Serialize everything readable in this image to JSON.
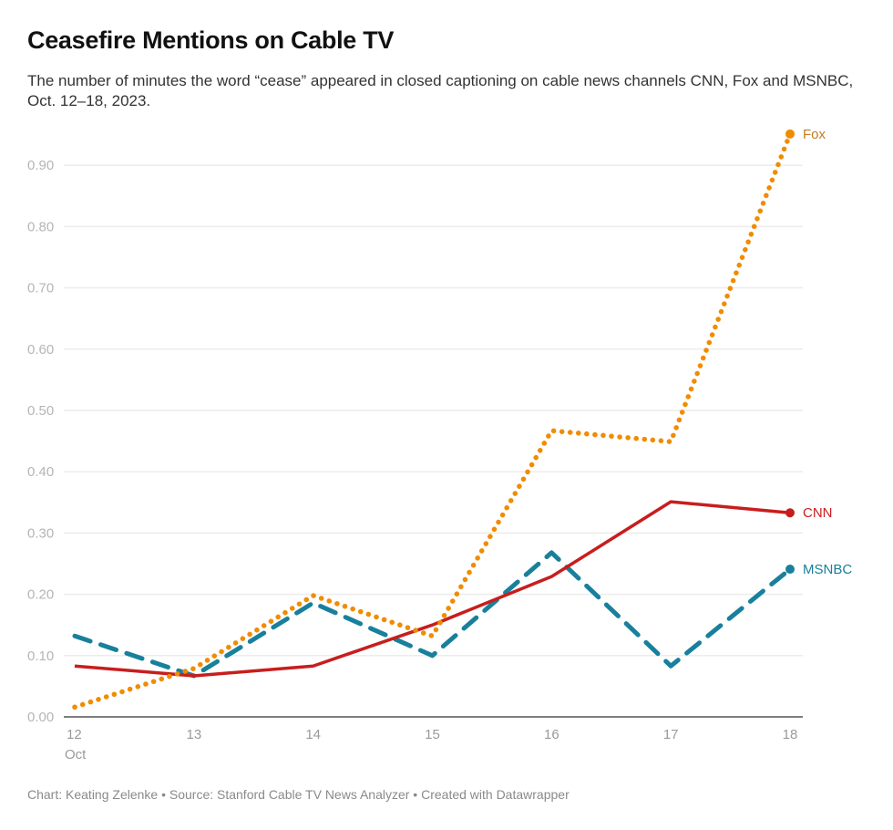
{
  "title": "Ceasefire Mentions on Cable TV",
  "subtitle": "The number of minutes the word “cease” appeared in closed captioning on cable news channels CNN, Fox and MSNBC, Oct. 12–18, 2023.",
  "footer": "Chart: Keating Zelenke • Source: Stanford Cable TV News Analyzer • Created with Datawrapper",
  "chart_data": {
    "type": "line",
    "title": "Ceasefire Mentions on Cable TV",
    "xlabel": "",
    "ylabel": "",
    "x": [
      12,
      13,
      14,
      15,
      16,
      17,
      18
    ],
    "x_tick_labels": [
      "12",
      "13",
      "14",
      "15",
      "16",
      "17",
      "18"
    ],
    "x_sub_label": "Oct",
    "ylim": [
      0,
      0.95
    ],
    "y_ticks": [
      0,
      0.1,
      0.2,
      0.3,
      0.4,
      0.5,
      0.6,
      0.7,
      0.8,
      0.9
    ],
    "y_tick_labels": [
      "0.00",
      "0.10",
      "0.20",
      "0.30",
      "0.40",
      "0.50",
      "0.60",
      "0.70",
      "0.80",
      "0.90"
    ],
    "grid": true,
    "legend": "direct labels at line ends (right)",
    "series": [
      {
        "name": "Fox",
        "color": "#f08c00",
        "label_color": "#c77a1e",
        "style": "dotted",
        "values": [
          0.016,
          0.079,
          0.198,
          0.132,
          0.467,
          0.449,
          0.951
        ]
      },
      {
        "name": "CNN",
        "color": "#c71e1d",
        "label_color": "#c71e1d",
        "style": "solid",
        "values": [
          0.083,
          0.067,
          0.083,
          0.15,
          0.229,
          0.351,
          0.333
        ]
      },
      {
        "name": "MSNBC",
        "color": "#18809c",
        "label_color": "#18809c",
        "style": "dashed",
        "values": [
          0.132,
          0.067,
          0.186,
          0.1,
          0.268,
          0.083,
          0.241
        ]
      }
    ]
  }
}
